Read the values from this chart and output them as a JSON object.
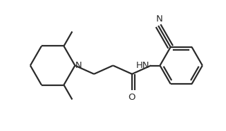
{
  "bg_color": "#ffffff",
  "line_color": "#2a2a2a",
  "line_width": 1.6,
  "font_size": 9.5,
  "figsize": [
    3.27,
    1.89
  ],
  "dpi": 100,
  "xlim": [
    0.0,
    10.0
  ],
  "ylim": [
    0.0,
    5.8
  ]
}
